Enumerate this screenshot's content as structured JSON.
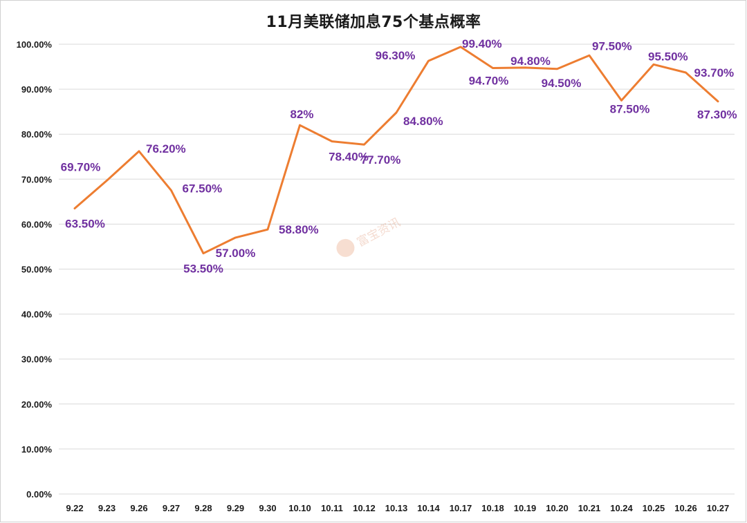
{
  "chart_data": {
    "type": "line",
    "title": "11月美联储加息75个基点概率",
    "xlabel": "",
    "ylabel": "",
    "categories": [
      "9.22",
      "9.23",
      "9.26",
      "9.27",
      "9.28",
      "9.29",
      "9.30",
      "10.10",
      "10.11",
      "10.12",
      "10.13",
      "10.14",
      "10.17",
      "10.18",
      "10.19",
      "10.20",
      "10.21",
      "10.24",
      "10.25",
      "10.26",
      "10.27"
    ],
    "series": [
      {
        "values": [
          63.5,
          69.7,
          76.2,
          67.5,
          53.5,
          57.0,
          58.8,
          82.0,
          78.4,
          77.7,
          84.8,
          96.3,
          99.4,
          94.7,
          94.8,
          94.5,
          97.5,
          87.5,
          95.5,
          93.7,
          87.3
        ],
        "labels": [
          "63.50%",
          "69.70%",
          "76.20%",
          "67.50%",
          "53.50%",
          "57.00%",
          "58.80%",
          "82%",
          "78.40%",
          "77.70%",
          "84.80%",
          "96.30%",
          "99.40%",
          "94.70%",
          "94.80%",
          "94.50%",
          "97.50%",
          "87.50%",
          "95.50%",
          "93.70%",
          "87.30%"
        ],
        "color": "#ed7d31",
        "label_color": "#7030a0"
      }
    ],
    "ylim": [
      0,
      100
    ],
    "yticks": [
      0,
      10,
      20,
      30,
      40,
      50,
      60,
      70,
      80,
      90,
      100
    ],
    "ytick_labels": [
      "0.00%",
      "10.00%",
      "20.00%",
      "30.00%",
      "40.00%",
      "50.00%",
      "60.00%",
      "70.00%",
      "80.00%",
      "90.00%",
      "100.00%"
    ],
    "grid": "horizontal",
    "legend": "none"
  },
  "watermark": {
    "text": "富宝资讯"
  }
}
